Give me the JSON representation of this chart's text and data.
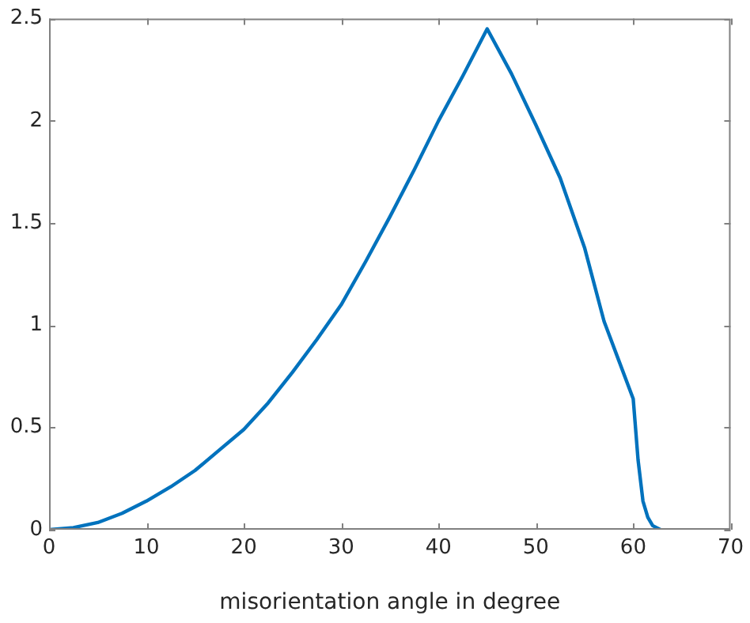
{
  "chart_data": {
    "type": "line",
    "xlabel": "misorientation angle in degree",
    "x": [
      0,
      2.5,
      5,
      7.5,
      10,
      12.5,
      15,
      17.5,
      20,
      22.5,
      25,
      27.5,
      30,
      32.5,
      35,
      37.5,
      40,
      42.5,
      45,
      47.5,
      50,
      52.5,
      55,
      57,
      58.5,
      60,
      60.5,
      61,
      61.5,
      62,
      62.8
    ],
    "series": [
      {
        "color": "#0072bd",
        "values": [
          0,
          0.01,
          0.035,
          0.08,
          0.14,
          0.21,
          0.29,
          0.39,
          0.49,
          0.62,
          0.77,
          0.93,
          1.1,
          1.31,
          1.53,
          1.76,
          2.0,
          2.22,
          2.45,
          2.23,
          1.98,
          1.72,
          1.38,
          1.02,
          0.83,
          0.64,
          0.34,
          0.14,
          0.06,
          0.02,
          0
        ]
      }
    ],
    "xlim": [
      0,
      70
    ],
    "xticks": [
      0,
      10,
      20,
      30,
      40,
      50,
      60,
      70
    ],
    "ylim": [
      0,
      2.5
    ],
    "yticks": [
      0,
      0.5,
      1,
      1.5,
      2,
      2.5
    ],
    "grid": false,
    "legend": false,
    "marker": "none",
    "line_style": "solid"
  }
}
